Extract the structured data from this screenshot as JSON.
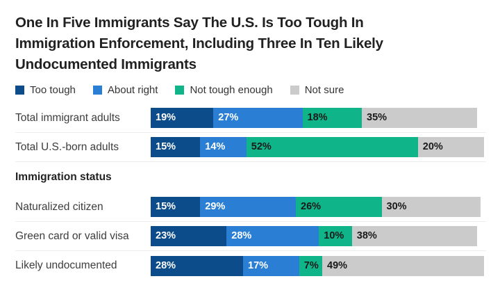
{
  "page": {
    "title_lines": [
      "One In Five Immigrants Say The U.S. Is Too Tough In",
      "Immigration Enforcement, Including Three In Ten Likely",
      "Undocumented Immigrants"
    ]
  },
  "chart_data": {
    "type": "bar",
    "stacked": true,
    "orientation": "horizontal",
    "title": "One In Five Immigrants Say The U.S. Is Too Tough In Immigration Enforcement, Including Three In Ten Likely Undocumented Immigrants",
    "value_unit": "%",
    "xlim": [
      0,
      100
    ],
    "legend_position": "top",
    "categories": [
      "Total immigrant adults",
      "Total U.S.-born adults",
      "Naturalized citizen",
      "Green card or valid visa",
      "Likely undocumented"
    ],
    "section_header": "Immigration status",
    "section_break_index": 2,
    "series": [
      {
        "name": "Too tough",
        "color": "#0C4C8A",
        "text_color": "#FFFFFF",
        "values": [
          19,
          15,
          15,
          23,
          28
        ]
      },
      {
        "name": "About right",
        "color": "#2A7FD4",
        "text_color": "#FFFFFF",
        "values": [
          27,
          14,
          29,
          28,
          17
        ]
      },
      {
        "name": "Not tough enough",
        "color": "#0FB488",
        "text_color": "#1A1A1A",
        "values": [
          18,
          52,
          26,
          10,
          7
        ]
      },
      {
        "name": "Not sure",
        "color": "#CBCBCB",
        "text_color": "#1A1A1A",
        "values": [
          35,
          20,
          30,
          38,
          49
        ]
      }
    ]
  }
}
